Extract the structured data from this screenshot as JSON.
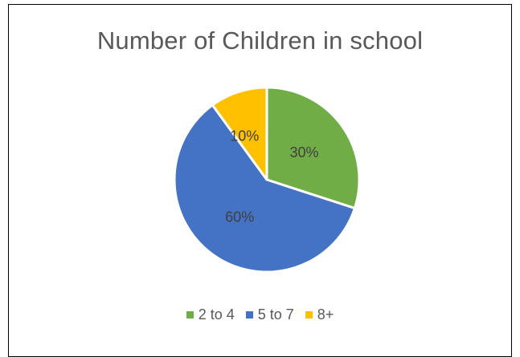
{
  "chart_data": {
    "type": "pie",
    "title": "Number of Children in school",
    "categories": [
      "2 to 4",
      "5 to 7",
      "8+"
    ],
    "values": [
      30,
      60,
      10
    ],
    "data_labels": [
      "30%",
      "60%",
      "10%"
    ],
    "colors": [
      "#70AD47",
      "#4472C4",
      "#FFC000"
    ],
    "legend_position": "bottom"
  }
}
